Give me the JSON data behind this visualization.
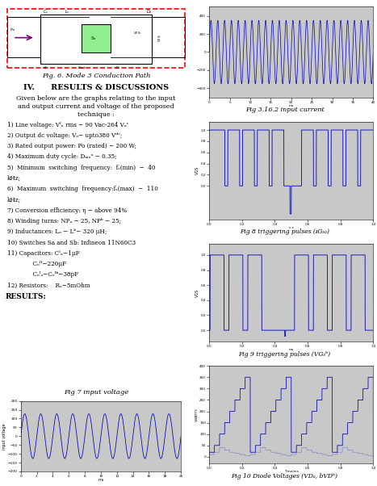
{
  "fig_caption": "Fig. 6. Mode 3 Conduction Path",
  "section_title": "IV.      RESULTS & DISCUSSIONS",
  "intro_text1": "Given below are the graphs relating to the input",
  "intro_text2": "and output current and voltage of the proposed",
  "intro_text3": "technique :",
  "param1": "1) Line voltage: Vᴵₙ rms − 90 Vac-264 Vₐᶜ",
  "param2": "2) Output dc voltage: Vₒ− upto380 Vᵈᶜ;",
  "param3": "3) Rated output power: Po (rated) − 200 W;",
  "param4": "4) Maximum duty cycle: Dₘₐˣ − 0.35;",
  "param5": "5)  Minimum  switching  frequency:  fₛ(min)  −  40",
  "param5b": "kHz;",
  "param6": "6)  Maximum  switching  frequency:fₛ(max)  −  110",
  "param6b": "kHz;",
  "param7": "7) Conversion efficiency: η − above 94%",
  "param8": "8) Winding turns: NPₐ − 25, NPᵇ − 25;",
  "param9": "9) Inductances: Lₐ − Lᵇ− 320 μH;",
  "param10": "10) Switches Sa and Sb: Infineon 11N60C3",
  "param11a": "11) Capacitors: Cᴵₙ−1μF",
  "param11b": "              Cₒᴵᵗ−220μF",
  "param11c": "              Cₒᴵₐ−Cₒᴵᵇ−38pF",
  "param12": "12) Resistors:    Rₒ−5mOhm",
  "results_label": "RESULTS:",
  "fig7_caption": "Fig 7 input voltage",
  "fig3162_caption": "Fig 3.16.2 input current",
  "fig8_caption": "Fig 8 triggering pulses (ᵻGₛₐ)",
  "fig9_caption": "Fig 9 triggering pulses (VGₛᵇ)",
  "fig10_caption": "Fig 10 Diode Voltages (VDₐ, bVDᵇ)",
  "bg_gray": "#787878",
  "inner_bg": "#c8c8c8",
  "line_blue": "#0000bb",
  "line_blue_light": "#8888cc"
}
